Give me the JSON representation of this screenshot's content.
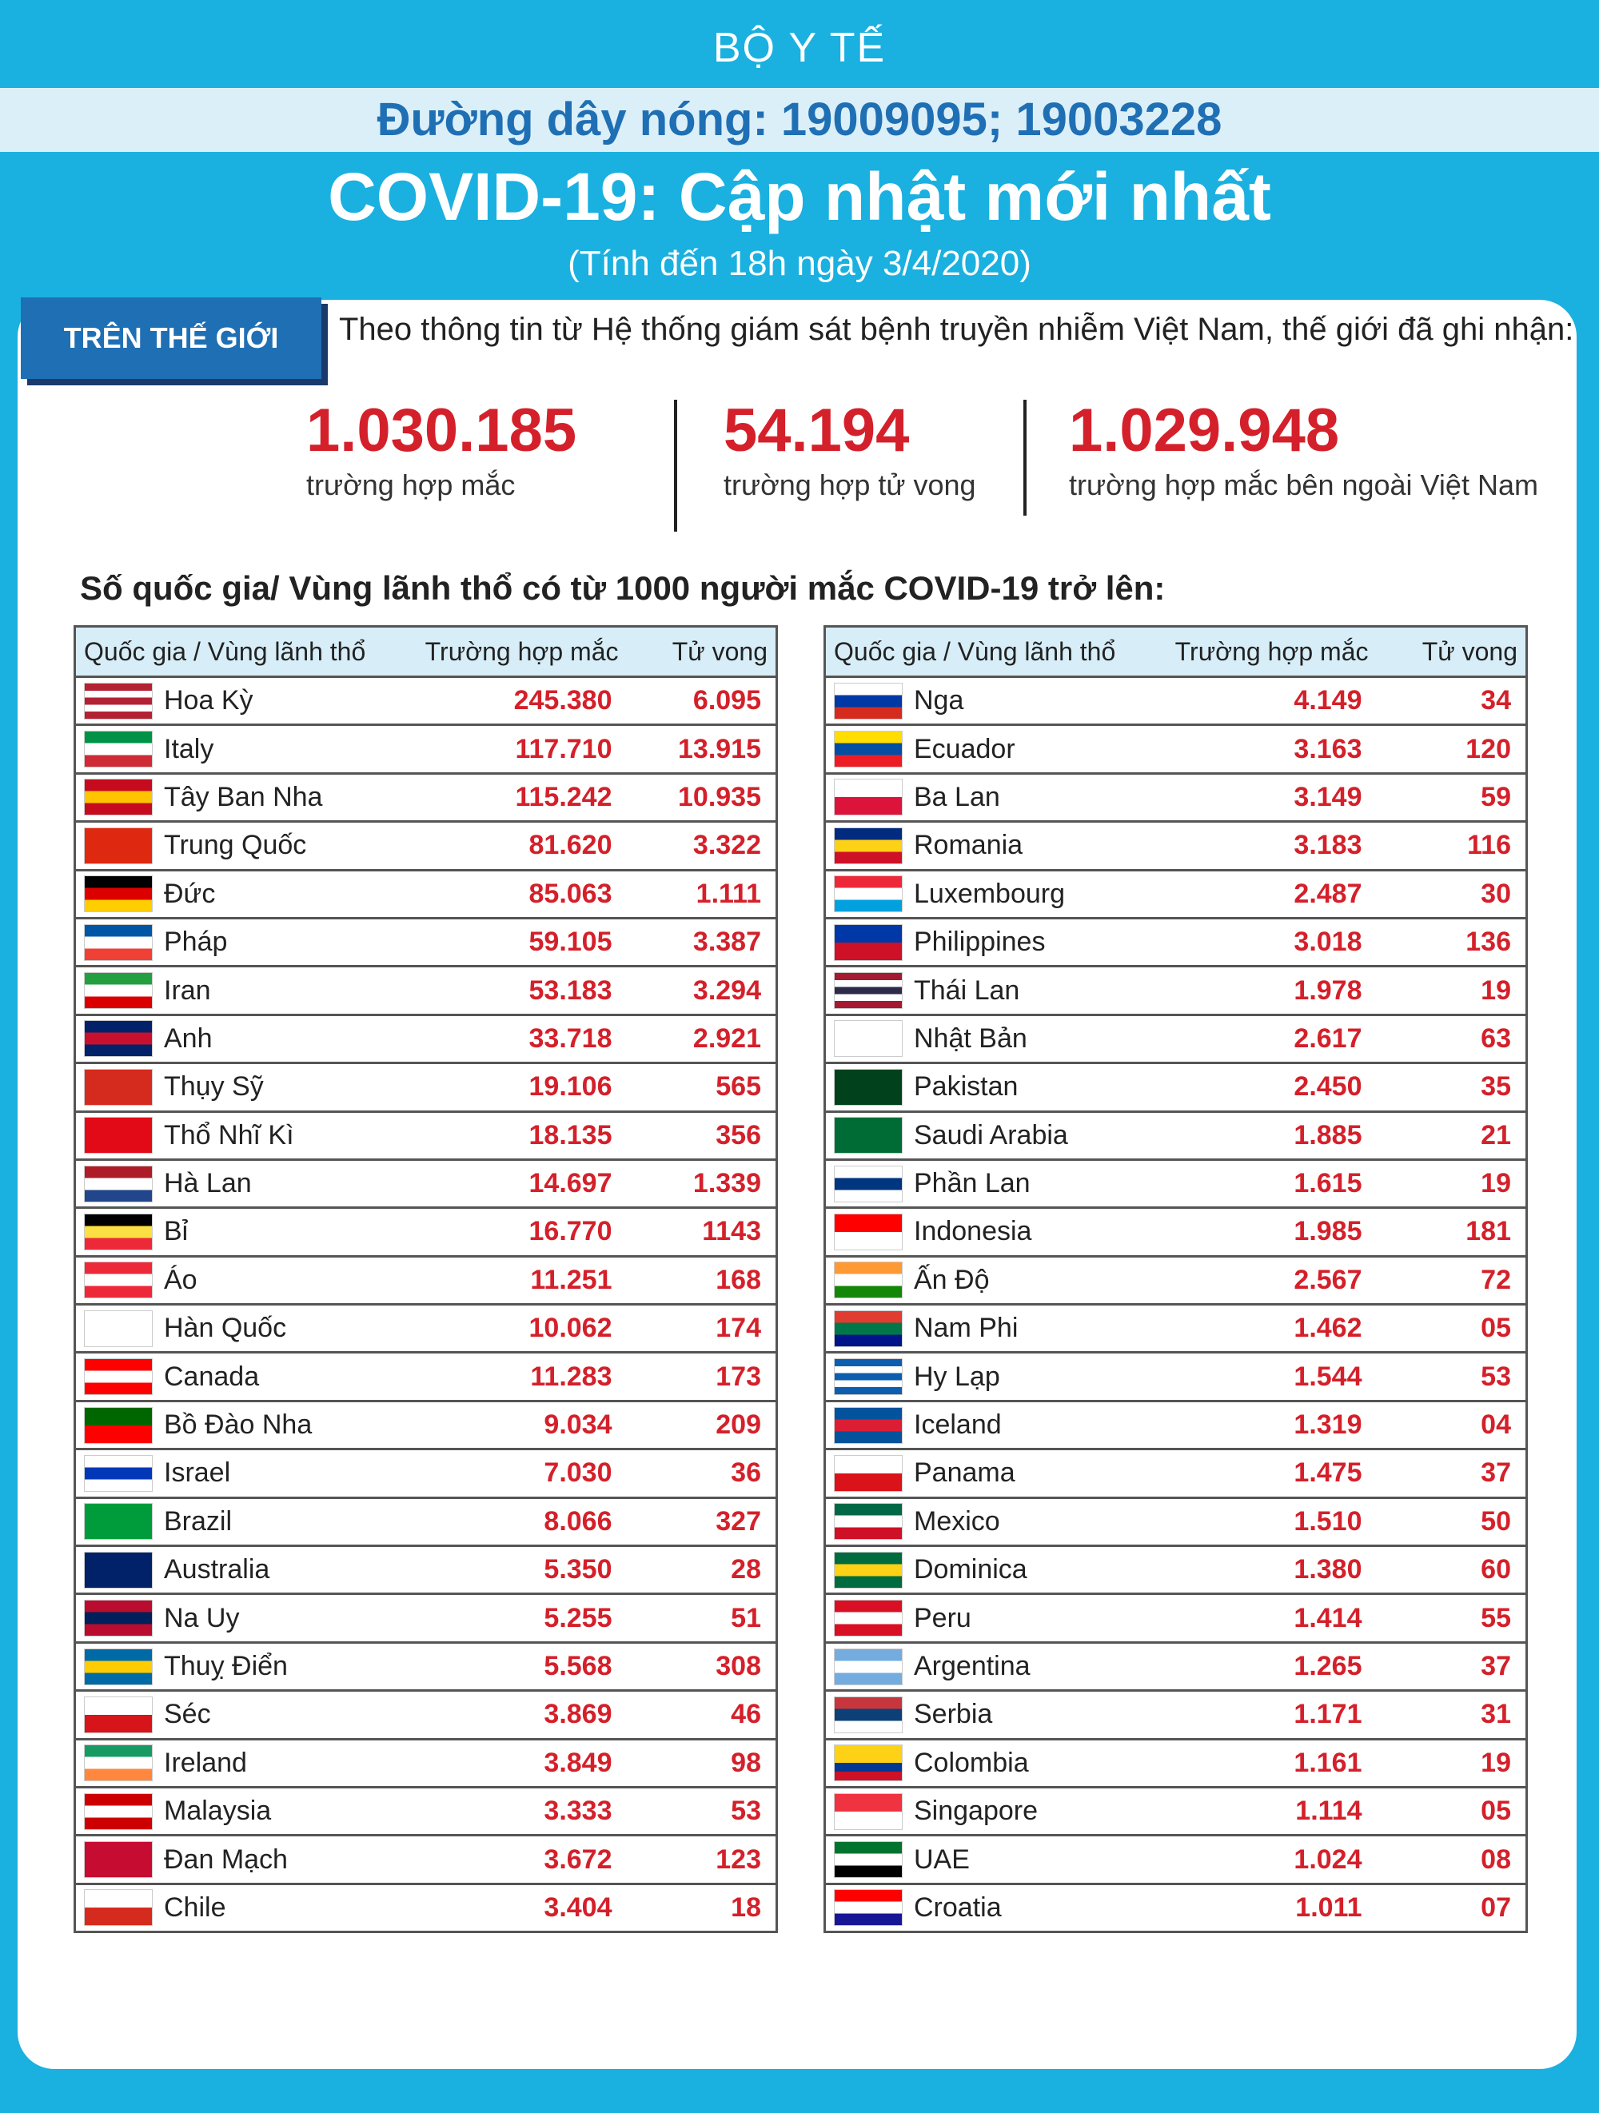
{
  "header": {
    "ministry": "BỘ Y TẾ",
    "hotline": "Đường dây nóng: 19009095; 19003228",
    "title": "COVID-19: Cập nhật mới nhất",
    "subtitle": "(Tính đến 18h ngày 3/4/2020)"
  },
  "world": {
    "tab_label": "TRÊN THẾ GIỚI",
    "intro": "Theo thông tin từ Hệ thống giám sát bệnh truyền nhiễm Việt Nam, thế giới đã ghi nhận:",
    "stats": [
      {
        "value": "1.030.185",
        "label": "trường hợp mắc"
      },
      {
        "value": "54.194",
        "label": "trường hợp tử vong"
      },
      {
        "value": "1.029.948",
        "label": "trường hợp  mắc bên ngoài Việt Nam"
      }
    ]
  },
  "table_section": {
    "title": "Số quốc gia/ Vùng lãnh thổ có từ 1000 người  mắc COVID-19 trở lên:",
    "headers": [
      "Quốc gia / Vùng lãnh thổ",
      "Trường hợp mắc",
      "Tử vong"
    ],
    "left": [
      {
        "name": "Hoa Kỳ",
        "cases": "245.380",
        "deaths": "6.095",
        "flag": [
          "#b22234",
          "#fff",
          "#b22234",
          "#fff",
          "#b22234"
        ]
      },
      {
        "name": "Italy",
        "cases": "117.710",
        "deaths": "13.915",
        "flag": [
          "#009246",
          "#ffffff",
          "#ce2b37"
        ]
      },
      {
        "name": "Tây Ban Nha",
        "cases": "115.242",
        "deaths": "10.935",
        "flag": [
          "#c60b1e",
          "#ffc400",
          "#c60b1e"
        ]
      },
      {
        "name": "Trung Quốc",
        "cases": "81.620",
        "deaths": "3.322",
        "flag": [
          "#de2910"
        ]
      },
      {
        "name": "Đức",
        "cases": "85.063",
        "deaths": "1.111",
        "flag": [
          "#000000",
          "#dd0000",
          "#ffce00"
        ]
      },
      {
        "name": "Pháp",
        "cases": "59.105",
        "deaths": "3.387",
        "flag": [
          "#0055a4",
          "#ffffff",
          "#ef4135"
        ]
      },
      {
        "name": "Iran",
        "cases": "53.183",
        "deaths": "3.294",
        "flag": [
          "#239f40",
          "#ffffff",
          "#da0000"
        ]
      },
      {
        "name": "Anh",
        "cases": "33.718",
        "deaths": "2.921",
        "flag": [
          "#012169",
          "#c8102e",
          "#012169"
        ]
      },
      {
        "name": "Thụy Sỹ",
        "cases": "19.106",
        "deaths": "565",
        "flag": [
          "#d52b1e"
        ]
      },
      {
        "name": "Thổ Nhĩ Kì",
        "cases": "18.135",
        "deaths": "356",
        "flag": [
          "#e30a17"
        ]
      },
      {
        "name": "Hà Lan",
        "cases": "14.697",
        "deaths": "1.339",
        "flag": [
          "#ae1c28",
          "#ffffff",
          "#21468b"
        ]
      },
      {
        "name": "Bỉ",
        "cases": "16.770",
        "deaths": "1143",
        "flag": [
          "#000000",
          "#fae042",
          "#ed2939"
        ]
      },
      {
        "name": "Áo",
        "cases": "11.251",
        "deaths": "168",
        "flag": [
          "#ed2939",
          "#ffffff",
          "#ed2939"
        ]
      },
      {
        "name": "Hàn Quốc",
        "cases": "10.062",
        "deaths": "174",
        "flag": [
          "#ffffff"
        ]
      },
      {
        "name": "Canada",
        "cases": "11.283",
        "deaths": "173",
        "flag": [
          "#ff0000",
          "#ffffff",
          "#ff0000"
        ]
      },
      {
        "name": "Bồ Đào Nha",
        "cases": "9.034",
        "deaths": "209",
        "flag": [
          "#006600",
          "#ff0000"
        ]
      },
      {
        "name": "Israel",
        "cases": "7.030",
        "deaths": "36",
        "flag": [
          "#ffffff",
          "#0038b8",
          "#ffffff"
        ]
      },
      {
        "name": "Brazil",
        "cases": "8.066",
        "deaths": "327",
        "flag": [
          "#009c3b"
        ]
      },
      {
        "name": "Australia",
        "cases": "5.350",
        "deaths": "28",
        "flag": [
          "#012169"
        ]
      },
      {
        "name": "Na Uy",
        "cases": "5.255",
        "deaths": "51",
        "flag": [
          "#ba0c2f",
          "#00205b",
          "#ba0c2f"
        ]
      },
      {
        "name": "Thuỵ Điển",
        "cases": "5.568",
        "deaths": "308",
        "flag": [
          "#006aa7",
          "#fecc00",
          "#006aa7"
        ]
      },
      {
        "name": "Séc",
        "cases": "3.869",
        "deaths": "46",
        "flag": [
          "#ffffff",
          "#d7141a"
        ]
      },
      {
        "name": "Ireland",
        "cases": "3.849",
        "deaths": "98",
        "flag": [
          "#169b62",
          "#ffffff",
          "#ff883e"
        ]
      },
      {
        "name": "Malaysia",
        "cases": "3.333",
        "deaths": "53",
        "flag": [
          "#cc0001",
          "#ffffff",
          "#cc0001"
        ]
      },
      {
        "name": "Đan Mạch",
        "cases": "3.672",
        "deaths": "123",
        "flag": [
          "#c60c30"
        ]
      },
      {
        "name": "Chile",
        "cases": "3.404",
        "deaths": "18",
        "flag": [
          "#ffffff",
          "#d52b1e"
        ]
      }
    ],
    "right": [
      {
        "name": "Nga",
        "cases": "4.149",
        "deaths": "34",
        "flag": [
          "#ffffff",
          "#0039a6",
          "#d52b1e"
        ]
      },
      {
        "name": "Ecuador",
        "cases": "3.163",
        "deaths": "120",
        "flag": [
          "#ffdd00",
          "#034ea2",
          "#ed1c24"
        ]
      },
      {
        "name": "Ba Lan",
        "cases": "3.149",
        "deaths": "59",
        "flag": [
          "#ffffff",
          "#dc143c"
        ]
      },
      {
        "name": "Romania",
        "cases": "3.183",
        "deaths": "116",
        "flag": [
          "#002b7f",
          "#fcd116",
          "#ce1126"
        ]
      },
      {
        "name": "Luxembourg",
        "cases": "2.487",
        "deaths": "30",
        "flag": [
          "#ed2939",
          "#ffffff",
          "#00a1de"
        ]
      },
      {
        "name": "Philippines",
        "cases": "3.018",
        "deaths": "136",
        "flag": [
          "#0038a8",
          "#ce1126"
        ]
      },
      {
        "name": "Thái Lan",
        "cases": "1.978",
        "deaths": "19",
        "flag": [
          "#a51931",
          "#ffffff",
          "#2d2a4a",
          "#ffffff",
          "#a51931"
        ]
      },
      {
        "name": "Nhật Bản",
        "cases": "2.617",
        "deaths": "63",
        "flag": [
          "#ffffff"
        ]
      },
      {
        "name": "Pakistan",
        "cases": "2.450",
        "deaths": "35",
        "flag": [
          "#01411c"
        ]
      },
      {
        "name": "Saudi Arabia",
        "cases": "1.885",
        "deaths": "21",
        "flag": [
          "#006c35"
        ]
      },
      {
        "name": "Phần Lan",
        "cases": "1.615",
        "deaths": "19",
        "flag": [
          "#ffffff",
          "#003580",
          "#ffffff"
        ]
      },
      {
        "name": "Indonesia",
        "cases": "1.985",
        "deaths": "181",
        "flag": [
          "#ff0000",
          "#ffffff"
        ]
      },
      {
        "name": "Ấn Độ",
        "cases": "2.567",
        "deaths": "72",
        "flag": [
          "#ff9933",
          "#ffffff",
          "#138808"
        ]
      },
      {
        "name": "Nam Phi",
        "cases": "1.462",
        "deaths": "05",
        "flag": [
          "#e03c31",
          "#007749",
          "#001489"
        ]
      },
      {
        "name": "Hy Lạp",
        "cases": "1.544",
        "deaths": "53",
        "flag": [
          "#0d5eaf",
          "#ffffff",
          "#0d5eaf",
          "#ffffff",
          "#0d5eaf"
        ]
      },
      {
        "name": "Iceland",
        "cases": "1.319",
        "deaths": "04",
        "flag": [
          "#02529c",
          "#dc1e35",
          "#02529c"
        ]
      },
      {
        "name": "Panama",
        "cases": "1.475",
        "deaths": "37",
        "flag": [
          "#ffffff",
          "#da121a"
        ]
      },
      {
        "name": "Mexico",
        "cases": "1.510",
        "deaths": "50",
        "flag": [
          "#006847",
          "#ffffff",
          "#ce1126"
        ]
      },
      {
        "name": "Dominica",
        "cases": "1.380",
        "deaths": "60",
        "flag": [
          "#006b3f",
          "#fcd116",
          "#006b3f"
        ]
      },
      {
        "name": "Peru",
        "cases": "1.414",
        "deaths": "55",
        "flag": [
          "#d91023",
          "#ffffff",
          "#d91023"
        ]
      },
      {
        "name": "Argentina",
        "cases": "1.265",
        "deaths": "37",
        "flag": [
          "#74acdf",
          "#ffffff",
          "#74acdf"
        ]
      },
      {
        "name": "Serbia",
        "cases": "1.171",
        "deaths": "31",
        "flag": [
          "#c6363c",
          "#0c4076",
          "#ffffff"
        ]
      },
      {
        "name": "Colombia",
        "cases": "1.161",
        "deaths": "19",
        "flag": [
          "#fcd116",
          "#fcd116",
          "#003893",
          "#ce1126"
        ]
      },
      {
        "name": "Singapore",
        "cases": "1.114",
        "deaths": "05",
        "flag": [
          "#ef3340",
          "#ffffff"
        ]
      },
      {
        "name": "UAE",
        "cases": "1.024",
        "deaths": "08",
        "flag": [
          "#00732f",
          "#ffffff",
          "#000000"
        ]
      },
      {
        "name": "Croatia",
        "cases": "1.011",
        "deaths": "07",
        "flag": [
          "#ff0000",
          "#ffffff",
          "#171796"
        ]
      }
    ]
  }
}
